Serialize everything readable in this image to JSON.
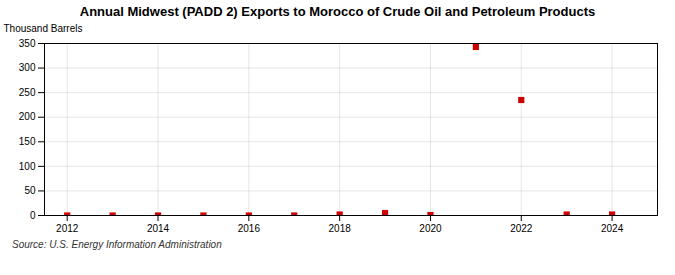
{
  "chart_data": {
    "type": "scatter",
    "title": "Annual Midwest (PADD 2) Exports to Morocco of Crude Oil and Petroleum Products",
    "ylabel": "Thousand Barrels",
    "source": "Source: U.S. Energy Information Administration",
    "x": [
      2012,
      2013,
      2014,
      2015,
      2016,
      2017,
      2018,
      2019,
      2020,
      2021,
      2022,
      2023,
      2024
    ],
    "values": [
      0,
      0,
      0,
      0,
      0,
      0,
      2,
      5,
      1,
      343,
      235,
      2,
      2
    ],
    "color": "#cc0000",
    "marker": "square",
    "xlim": [
      2011.5,
      2025
    ],
    "xticks": [
      2012,
      2014,
      2016,
      2018,
      2020,
      2022,
      2024
    ],
    "ylim": [
      0,
      350
    ],
    "yticks": [
      0,
      50,
      100,
      150,
      200,
      250,
      300,
      350
    ],
    "grid": true
  }
}
